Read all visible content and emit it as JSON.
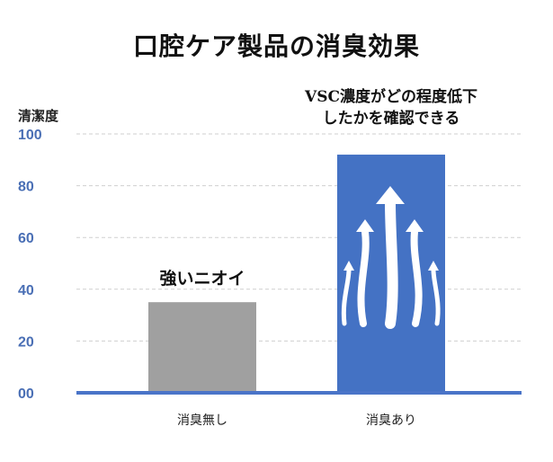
{
  "title": "口腔ケア製品の消臭効果",
  "chart_data": {
    "type": "bar",
    "title": "口腔ケア製品の消臭効果",
    "ylabel": "清潔度",
    "xlabel": "",
    "categories": [
      "消臭無し",
      "消臭あり"
    ],
    "values": [
      35,
      92
    ],
    "ylim": [
      0,
      100
    ],
    "yticks": [
      "00",
      "20",
      "40",
      "60",
      "80",
      "100"
    ],
    "ytick_values": [
      0,
      20,
      40,
      60,
      80,
      100
    ],
    "bar_colors": [
      "#a0a0a0",
      "#4472c4"
    ],
    "annotations": {
      "bar0": "強いニオイ",
      "bar1_line1": "VSC濃度がどの程度低下",
      "bar1_line2": "したかを確認できる"
    },
    "grid": true,
    "axis_color": "#4a74c8",
    "tick_color": "#4a6fb5"
  }
}
